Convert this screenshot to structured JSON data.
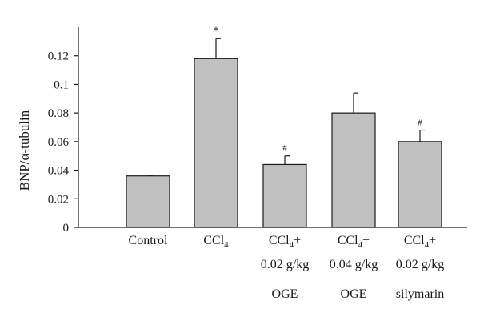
{
  "chart_data": {
    "type": "bar",
    "ylabel": "BNP/α-tubulin",
    "ylim": [
      0,
      0.14
    ],
    "yticks": [
      0,
      0.02,
      0.04,
      0.06,
      0.08,
      0.1,
      0.12
    ],
    "ytick_labels": [
      "0",
      "0.02",
      "0.04",
      "0.06",
      "0.08",
      "0.1",
      "0.12"
    ],
    "categories": [
      {
        "lines": [
          {
            "main": "Control"
          }
        ]
      },
      {
        "lines": [
          {
            "main": "CCl",
            "sub": "4"
          }
        ]
      },
      {
        "lines": [
          {
            "main": "CCl",
            "sub": "4",
            "after": "+"
          },
          {
            "main": "0.02  g/kg"
          },
          {
            "main": "OGE"
          }
        ]
      },
      {
        "lines": [
          {
            "main": "CCl",
            "sub": "4",
            "after": "+"
          },
          {
            "main": "0.04  g/kg"
          },
          {
            "main": "OGE"
          }
        ]
      },
      {
        "lines": [
          {
            "main": "CCl",
            "sub": "4",
            "after": "+"
          },
          {
            "main": "0.02  g/kg"
          },
          {
            "main": "silymarin"
          }
        ]
      }
    ],
    "values": [
      0.036,
      0.118,
      0.044,
      0.08,
      0.06
    ],
    "errors": [
      0.0005,
      0.014,
      0.006,
      0.014,
      0.008
    ],
    "annotations": [
      "",
      "*",
      "#",
      "",
      "#"
    ],
    "bar_color": "#c0c0c0",
    "bar_edge_color": "#1a1a1a",
    "grid": false,
    "legend": "none"
  }
}
